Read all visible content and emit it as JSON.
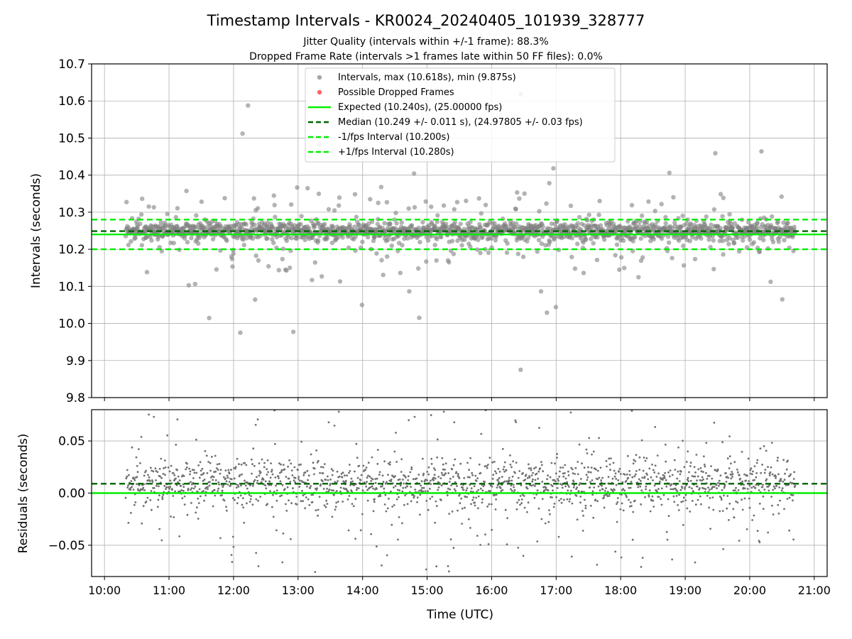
{
  "figure": {
    "title": "Timestamp Intervals - KR0024_20240405_101939_328777",
    "subtitle_1": "Jitter Quality (intervals within +/-1 frame): 88.3%",
    "subtitle_2": "Dropped Frame Rate (intervals >1 frames late within 50 FF files): 0.0%",
    "xlabel": "Time (UTC)"
  },
  "chart_data": [
    {
      "type": "scatter",
      "ylabel": "Intervals (seconds)",
      "ylim": [
        9.8,
        10.7
      ],
      "yticks": [
        "9.8",
        "9.9",
        "10.0",
        "10.1",
        "10.2",
        "10.3",
        "10.4",
        "10.5",
        "10.6",
        "10.7"
      ],
      "xlim_hours": [
        9.8,
        21.2
      ],
      "xticks": [
        "10:00",
        "11:00",
        "12:00",
        "13:00",
        "14:00",
        "15:00",
        "16:00",
        "17:00",
        "18:00",
        "19:00",
        "20:00",
        "21:00"
      ],
      "grid": true,
      "legend_placement": "upper-center",
      "data_start_hour": 10.33,
      "data_end_hour": 20.7,
      "series": [
        {
          "name": "Intervals, max (10.618s), min (9.875s)",
          "kind": "points",
          "color": "#808080",
          "max": 10.618,
          "min": 9.875
        },
        {
          "name": "Possible Dropped Frames",
          "kind": "points",
          "color": "#ff0000",
          "values": []
        },
        {
          "name": "Expected (10.240s), (25.00000 fps)",
          "kind": "hline",
          "value": 10.24,
          "color": "#00ee00",
          "style": "solid"
        },
        {
          "name": "Median (10.249 +/- 0.011 s), (24.97805 +/- 0.03 fps)",
          "kind": "hline",
          "value": 10.249,
          "color": "#006400",
          "style": "dashed"
        },
        {
          "name": "-1/fps Interval (10.200s)",
          "kind": "hline",
          "value": 10.2,
          "color": "#00ee00",
          "style": "dashed"
        },
        {
          "name": "+1/fps Interval (10.280s)",
          "kind": "hline",
          "value": 10.28,
          "color": "#00ee00",
          "style": "dashed"
        }
      ]
    },
    {
      "type": "scatter",
      "ylabel": "Residuals (seconds)",
      "ylim": [
        -0.08,
        0.08
      ],
      "yticks": [
        "−0.05",
        "0.00",
        "0.05"
      ],
      "ytick_values": [
        -0.05,
        0.0,
        0.05
      ],
      "grid": true,
      "series": [
        {
          "kind": "points",
          "color": "#707070"
        },
        {
          "kind": "hline",
          "value": 0.0,
          "color": "#00ee00",
          "style": "solid"
        },
        {
          "kind": "hline",
          "value": 0.009,
          "color": "#006400",
          "style": "dashed"
        }
      ]
    }
  ]
}
